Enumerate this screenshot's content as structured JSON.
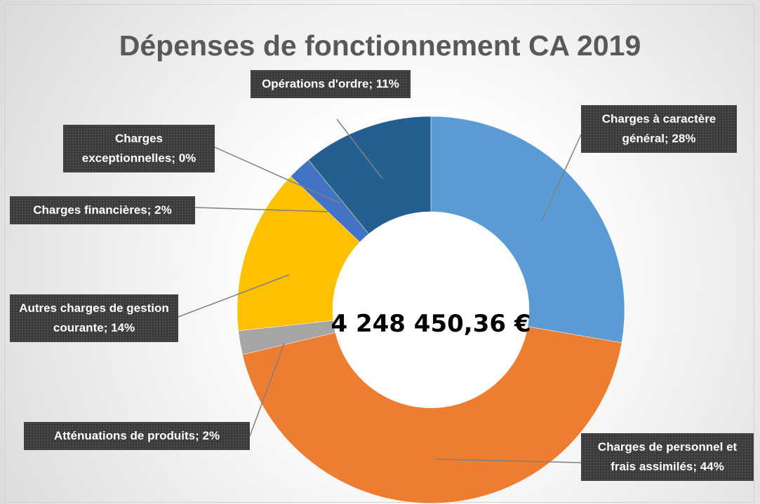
{
  "chart_data": {
    "type": "donut",
    "title": "Dépenses de fonctionnement CA 2019",
    "center_label": "4 248 450,36 €",
    "categories": [
      "Charges à caractère général",
      "Charges de personnel et frais assimilés",
      "Atténuations de produits",
      "Autres charges de gestion courante",
      "Charges financières",
      "Charges exceptionnelles",
      "Opérations d'ordre"
    ],
    "values": [
      28,
      44,
      2,
      14,
      2,
      0,
      11
    ],
    "value_labels": [
      "28%",
      "44%",
      "2%",
      "14%",
      "2%",
      "0%",
      "11%"
    ],
    "label_separator": "; ",
    "colors": [
      "#5b9bd5",
      "#ed7d31",
      "#a5a5a5",
      "#ffc000",
      "#4472c4",
      "#70ad47",
      "#255e91"
    ]
  }
}
